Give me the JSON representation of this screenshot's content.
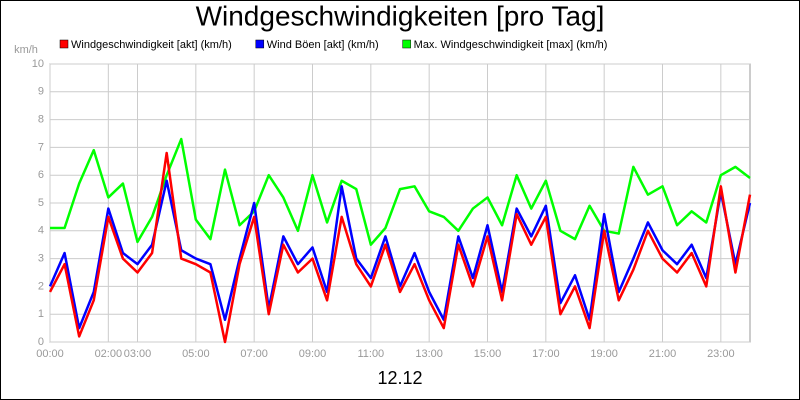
{
  "chart_data": {
    "type": "line",
    "title": "Windgeschwindigkeiten [pro Tag]",
    "subtitle": "12.12",
    "y_label": "km/h",
    "x": [
      0,
      0.5,
      1,
      1.5,
      2,
      2.5,
      3,
      3.5,
      4,
      4.5,
      5,
      5.5,
      6,
      6.5,
      7,
      7.5,
      8,
      8.5,
      9,
      9.5,
      10,
      10.5,
      11,
      11.5,
      12,
      12.5,
      13,
      13.5,
      14,
      14.5,
      15,
      15.5,
      16,
      16.5,
      17,
      17.5,
      18,
      18.5,
      19,
      19.5,
      20,
      20.5,
      21,
      21.5,
      22,
      22.5,
      23,
      23.5,
      24
    ],
    "series": [
      {
        "name": "Max. Windgeschwindigkeit [max] (km/h)",
        "color": "#00ff00",
        "values": [
          4.1,
          4.1,
          5.7,
          6.9,
          5.2,
          5.7,
          3.6,
          4.5,
          6.0,
          7.3,
          4.4,
          3.7,
          6.2,
          4.2,
          4.7,
          6.0,
          5.2,
          4.0,
          6.0,
          4.3,
          5.8,
          5.5,
          3.5,
          4.1,
          5.5,
          5.6,
          4.7,
          4.5,
          4.0,
          4.8,
          5.2,
          4.2,
          6.0,
          4.8,
          5.8,
          4.0,
          3.7,
          4.9,
          4.0,
          3.9,
          6.3,
          5.3,
          5.6,
          4.2,
          4.7,
          4.3,
          6.0,
          6.3,
          5.9
        ]
      },
      {
        "name": "Wind Böen [akt] (km/h)",
        "color": "#0000ff",
        "values": [
          2.0,
          3.2,
          0.5,
          1.8,
          4.8,
          3.2,
          2.8,
          3.5,
          5.8,
          3.3,
          3.0,
          2.8,
          0.8,
          3.0,
          5.0,
          1.2,
          3.8,
          2.8,
          3.4,
          1.8,
          5.6,
          3.0,
          2.3,
          3.8,
          2.0,
          3.2,
          1.8,
          0.8,
          3.8,
          2.3,
          4.2,
          1.8,
          4.8,
          3.8,
          4.9,
          1.4,
          2.4,
          0.8,
          4.6,
          1.8,
          3.0,
          4.3,
          3.3,
          2.8,
          3.5,
          2.3,
          5.4,
          2.8,
          5.0
        ]
      },
      {
        "name": "Windgeschwindigkeit [akt] (km/h)",
        "color": "#ff0000",
        "values": [
          1.8,
          2.8,
          0.2,
          1.5,
          4.5,
          3.0,
          2.5,
          3.2,
          6.8,
          3.0,
          2.8,
          2.5,
          0,
          2.8,
          4.5,
          1.0,
          3.5,
          2.5,
          3.0,
          1.5,
          4.5,
          2.8,
          2.0,
          3.5,
          1.8,
          2.8,
          1.5,
          0.5,
          3.5,
          2.0,
          3.8,
          1.5,
          4.6,
          3.5,
          4.5,
          1.0,
          2.0,
          0.5,
          4.0,
          1.5,
          2.6,
          4.0,
          3.0,
          2.5,
          3.2,
          2.0,
          5.6,
          2.5,
          5.3
        ]
      }
    ],
    "legend_order": [
      2,
      1,
      0
    ],
    "xlim": [
      0,
      24
    ],
    "xticks": [
      {
        "value": 0,
        "label": "00:00"
      },
      {
        "value": 2,
        "label": "02:00"
      },
      {
        "value": 3,
        "label": "03:00"
      },
      {
        "value": 5,
        "label": "05:00"
      },
      {
        "value": 7,
        "label": "07:00"
      },
      {
        "value": 9,
        "label": "09:00"
      },
      {
        "value": 11,
        "label": "11:00"
      },
      {
        "value": 13,
        "label": "13:00"
      },
      {
        "value": 15,
        "label": "15:00"
      },
      {
        "value": 17,
        "label": "17:00"
      },
      {
        "value": 19,
        "label": "19:00"
      },
      {
        "value": 21,
        "label": "21:00"
      },
      {
        "value": 23,
        "label": "23:00"
      }
    ],
    "ylim": [
      0,
      10
    ],
    "yticks": [
      0,
      1,
      2,
      3,
      4,
      5,
      6,
      7,
      8,
      9,
      10
    ],
    "grid": true
  }
}
